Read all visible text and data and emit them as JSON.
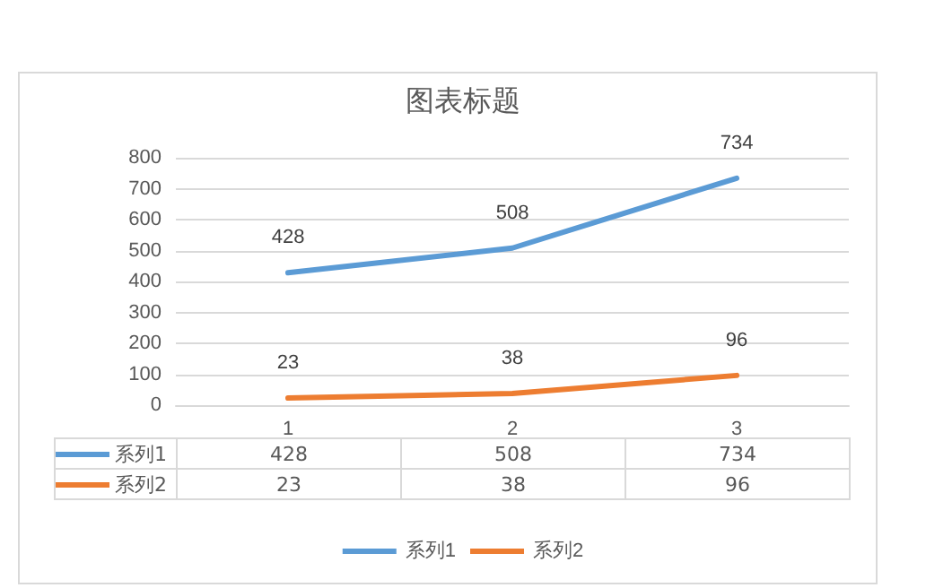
{
  "chart_data": {
    "type": "line",
    "title": "图表标题",
    "categories": [
      "1",
      "2",
      "3"
    ],
    "series": [
      {
        "name": "系列1",
        "color": "#5b9bd5",
        "values": [
          428,
          508,
          734
        ]
      },
      {
        "name": "系列2",
        "color": "#ed7d31",
        "values": [
          23,
          38,
          96
        ]
      }
    ],
    "annotations": [
      "428",
      "508",
      "734",
      "23",
      "38",
      "96"
    ],
    "ylim": [
      0,
      800
    ],
    "yticks": [
      0,
      100,
      200,
      300,
      400,
      500,
      600,
      700,
      800
    ],
    "grid": "y",
    "legend": "bottom",
    "marker": "none",
    "line_style": "solid",
    "data_labels": true
  }
}
